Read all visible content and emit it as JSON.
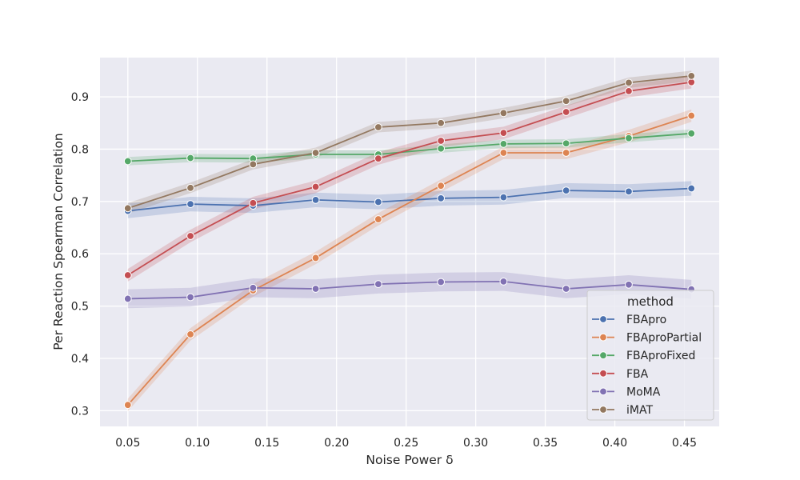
{
  "chart_data": {
    "type": "line",
    "title": "",
    "xlabel": "Noise Power δ",
    "ylabel": "Per Reaction Spearman Correlation",
    "xlim": [
      0.03,
      0.475
    ],
    "ylim": [
      0.27,
      0.975
    ],
    "grid": true,
    "x_ticks": [
      0.05,
      0.1,
      0.15,
      0.2,
      0.25,
      0.3,
      0.35,
      0.4,
      0.45
    ],
    "x_tick_labels": [
      "0.05",
      "0.10",
      "0.15",
      "0.20",
      "0.25",
      "0.30",
      "0.35",
      "0.40",
      "0.45"
    ],
    "y_ticks": [
      0.3,
      0.4,
      0.5,
      0.6,
      0.7,
      0.8,
      0.9
    ],
    "y_tick_labels": [
      "0.3",
      "0.4",
      "0.5",
      "0.6",
      "0.7",
      "0.8",
      "0.9"
    ],
    "x": [
      0.05,
      0.095,
      0.14,
      0.185,
      0.23,
      0.275,
      0.32,
      0.365,
      0.41,
      0.455
    ],
    "legend": {
      "title": "method",
      "position": "lower-right"
    },
    "series": [
      {
        "name": "FBApro",
        "color": "#4c72b0",
        "ci": 0.014,
        "values": [
          0.682,
          0.695,
          0.692,
          0.703,
          0.699,
          0.706,
          0.708,
          0.721,
          0.719,
          0.725
        ]
      },
      {
        "name": "FBAproPartial",
        "color": "#dd8452",
        "ci": 0.012,
        "values": [
          0.311,
          0.446,
          0.53,
          0.592,
          0.666,
          0.73,
          0.793,
          0.793,
          0.825,
          0.864
        ]
      },
      {
        "name": "FBAproFixed",
        "color": "#55a868",
        "ci": 0.008,
        "values": [
          0.777,
          0.783,
          0.782,
          0.79,
          0.79,
          0.801,
          0.81,
          0.811,
          0.821,
          0.83
        ]
      },
      {
        "name": "FBA",
        "color": "#c44e52",
        "ci": 0.012,
        "values": [
          0.559,
          0.634,
          0.697,
          0.728,
          0.782,
          0.816,
          0.831,
          0.871,
          0.911,
          0.928
        ]
      },
      {
        "name": "MoMA",
        "color": "#8172b3",
        "ci": 0.018,
        "values": [
          0.514,
          0.517,
          0.535,
          0.533,
          0.542,
          0.546,
          0.547,
          0.533,
          0.541,
          0.532
        ]
      },
      {
        "name": "iMAT",
        "color": "#937860",
        "ci": 0.01,
        "values": [
          0.687,
          0.726,
          0.771,
          0.793,
          0.842,
          0.85,
          0.869,
          0.892,
          0.927,
          0.94
        ]
      }
    ]
  }
}
